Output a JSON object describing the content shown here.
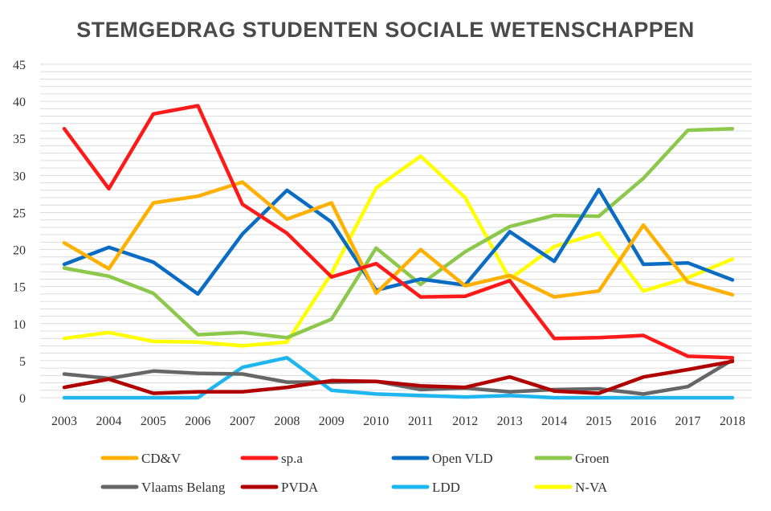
{
  "chart_data": {
    "type": "line",
    "title": "STEMGEDRAG STUDENTEN SOCIALE WETENSCHAPPEN",
    "xlabel": "",
    "ylabel": "",
    "x": [
      "2003",
      "2004",
      "2005",
      "2006",
      "2007",
      "2008",
      "2009",
      "2010",
      "2011",
      "2012",
      "2013",
      "2014",
      "2015",
      "2016",
      "2017",
      "2018"
    ],
    "ylim": [
      0,
      45
    ],
    "yticks": [
      "0",
      "5",
      "10",
      "15",
      "20",
      "25",
      "30",
      "35",
      "40",
      "45"
    ],
    "grid": true,
    "legend_position": "bottom",
    "series": [
      {
        "name": "CD&V",
        "color": "#FFB000",
        "values": [
          20.9,
          17.4,
          26.3,
          27.2,
          29.1,
          24.1,
          26.3,
          14.1,
          20.0,
          15.1,
          16.5,
          13.6,
          14.4,
          23.3,
          15.6,
          13.9
        ]
      },
      {
        "name": "sp.a",
        "color": "#FF1A1A",
        "values": [
          36.3,
          28.2,
          38.3,
          39.4,
          26.1,
          22.2,
          16.3,
          18.1,
          13.6,
          13.7,
          15.8,
          8.0,
          8.1,
          8.4,
          5.6,
          5.4
        ]
      },
      {
        "name": "Open VLD",
        "color": "#0A6CC2",
        "values": [
          18.0,
          20.3,
          18.3,
          14.0,
          22.1,
          28.0,
          23.7,
          14.5,
          16.0,
          15.2,
          22.4,
          18.4,
          28.1,
          18.0,
          18.2,
          15.9
        ]
      },
      {
        "name": "Groen",
        "color": "#8CC84B",
        "values": [
          17.5,
          16.4,
          14.1,
          8.5,
          8.8,
          8.1,
          10.6,
          20.2,
          15.3,
          19.7,
          23.1,
          24.6,
          24.5,
          29.6,
          36.1,
          36.3
        ]
      },
      {
        "name": "Vlaams Belang",
        "color": "#666666",
        "values": [
          3.2,
          2.6,
          3.6,
          3.3,
          3.2,
          2.1,
          2.1,
          2.2,
          1.1,
          1.3,
          0.8,
          1.1,
          1.2,
          0.5,
          1.5,
          5.1
        ]
      },
      {
        "name": "PVDA",
        "color": "#B00000",
        "values": [
          1.4,
          2.5,
          0.6,
          0.8,
          0.8,
          1.4,
          2.3,
          2.2,
          1.6,
          1.4,
          2.8,
          0.9,
          0.6,
          2.8,
          3.8,
          4.9
        ]
      },
      {
        "name": "LDD",
        "color": "#1FB5EE",
        "values": [
          0.0,
          0.0,
          0.0,
          0.0,
          4.1,
          5.4,
          1.0,
          0.5,
          0.3,
          0.1,
          0.3,
          0.0,
          0.0,
          0.0,
          0.0,
          0.0
        ]
      },
      {
        "name": "N-VA",
        "color": "#FFFF00",
        "values": [
          8.0,
          8.8,
          7.6,
          7.5,
          7.0,
          7.5,
          16.8,
          28.3,
          32.6,
          27.0,
          16.0,
          20.4,
          22.2,
          14.4,
          16.2,
          18.7
        ]
      }
    ]
  }
}
